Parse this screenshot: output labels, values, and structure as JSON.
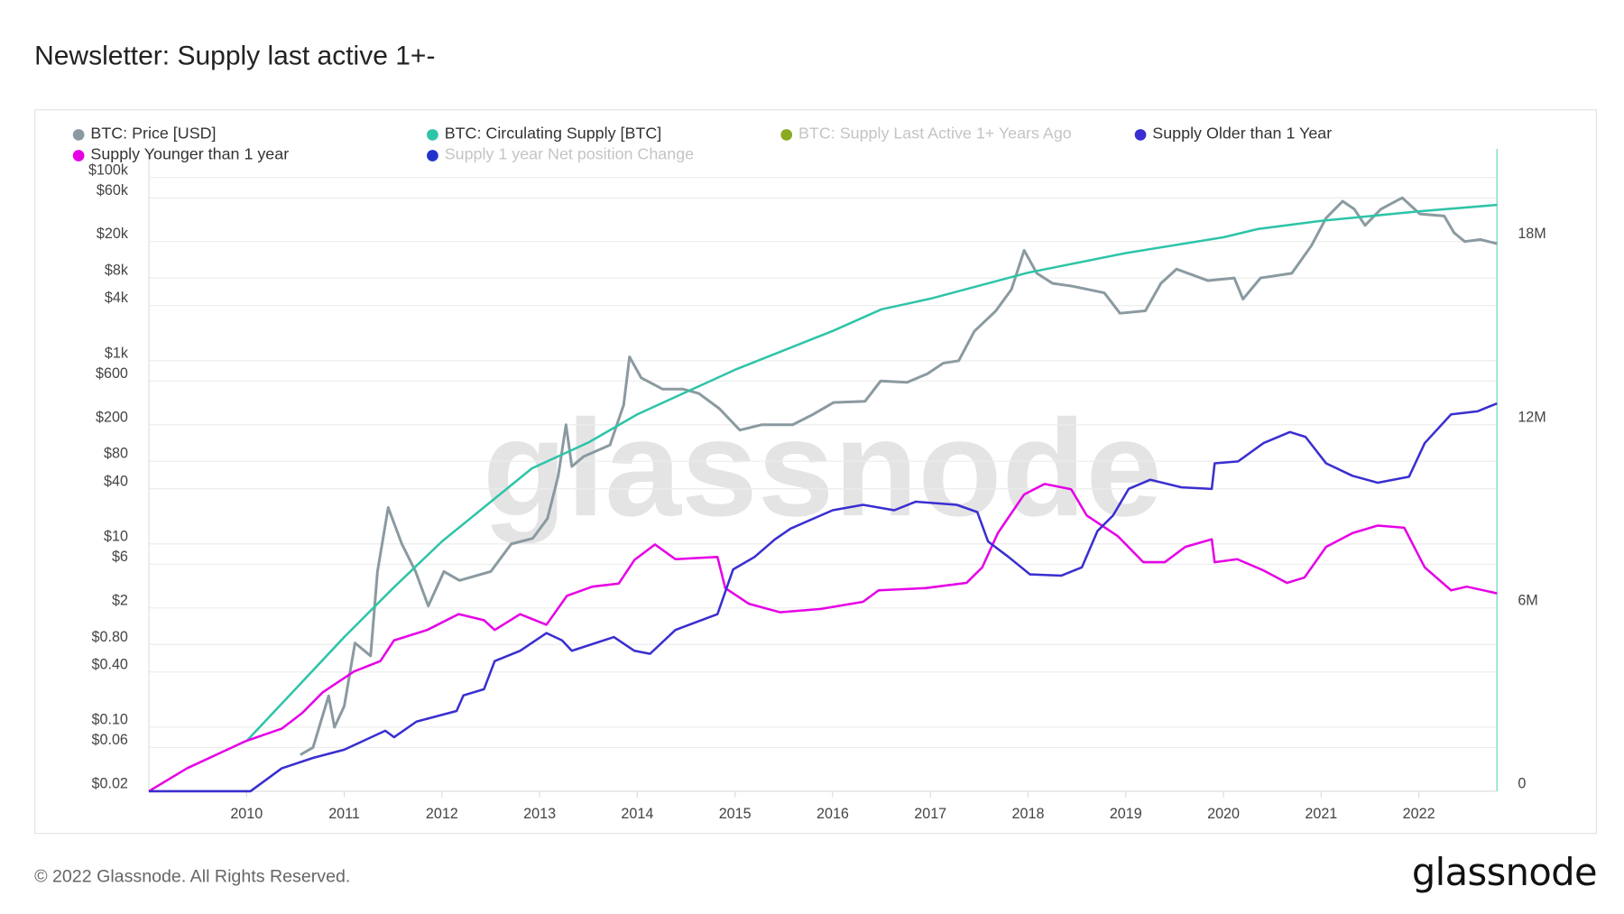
{
  "title": "Newsletter: Supply last active 1+-",
  "footer": "© 2022 Glassnode. All Rights Reserved.",
  "brand": "glassnode",
  "watermark": "glassnode",
  "chart_data": {
    "type": "line",
    "title": "Newsletter: Supply last active 1+-",
    "legend_placement": "top",
    "grid": true,
    "legend": [
      {
        "name": "BTC: Price [USD]",
        "color": "#8a9aa0",
        "active": true
      },
      {
        "name": "BTC: Circulating Supply [BTC]",
        "color": "#2ec4a8",
        "active": true
      },
      {
        "name": "BTC: Supply Last Active 1+ Years Ago",
        "color": "#8aaa22",
        "active": false
      },
      {
        "name": "Supply Older than 1 Year",
        "color": "#3a2ed0",
        "active": true
      },
      {
        "name": "Supply Younger than 1 year",
        "color": "#e600e6",
        "active": true
      },
      {
        "name": "Supply 1 year Net position Change",
        "color": "#2233cc",
        "active": false
      }
    ],
    "x_axis": {
      "range": [
        2009.0,
        2022.8
      ],
      "ticks": [
        "2010",
        "2011",
        "2012",
        "2013",
        "2014",
        "2015",
        "2016",
        "2017",
        "2018",
        "2019",
        "2020",
        "2021",
        "2022"
      ]
    },
    "y_left": {
      "scale": "log",
      "range": [
        0.02,
        100000
      ],
      "ticks": [
        {
          "label": "$100k",
          "value": 100000
        },
        {
          "label": "$60k",
          "value": 60000
        },
        {
          "label": "$20k",
          "value": 20000
        },
        {
          "label": "$8k",
          "value": 8000
        },
        {
          "label": "$4k",
          "value": 4000
        },
        {
          "label": "$1k",
          "value": 1000
        },
        {
          "label": "$600",
          "value": 600
        },
        {
          "label": "$200",
          "value": 200
        },
        {
          "label": "$80",
          "value": 80
        },
        {
          "label": "$40",
          "value": 40
        },
        {
          "label": "$10",
          "value": 10
        },
        {
          "label": "$6",
          "value": 6
        },
        {
          "label": "$2",
          "value": 2
        },
        {
          "label": "$0.80",
          "value": 0.8
        },
        {
          "label": "$0.40",
          "value": 0.4
        },
        {
          "label": "$0.10",
          "value": 0.1
        },
        {
          "label": "$0.06",
          "value": 0.06
        },
        {
          "label": "$0.02",
          "value": 0.02
        }
      ]
    },
    "y_right": {
      "scale": "linear",
      "range": [
        0,
        20700000
      ],
      "ticks": [
        {
          "label": "18M",
          "value": 18000000
        },
        {
          "label": "12M",
          "value": 12000000
        },
        {
          "label": "6M",
          "value": 6000000
        },
        {
          "label": "0",
          "value": 0
        }
      ]
    },
    "series": [
      {
        "name": "BTC: Price [USD]",
        "axis": "left",
        "color": "#8a9aa0",
        "points": [
          [
            2010.55,
            0.05
          ],
          [
            2010.68,
            0.06
          ],
          [
            2010.84,
            0.22
          ],
          [
            2010.9,
            0.1
          ],
          [
            2011.0,
            0.17
          ],
          [
            2011.11,
            0.83
          ],
          [
            2011.27,
            0.6
          ],
          [
            2011.34,
            5
          ],
          [
            2011.45,
            25
          ],
          [
            2011.59,
            10
          ],
          [
            2011.73,
            5
          ],
          [
            2011.86,
            2.1
          ],
          [
            2012.02,
            5
          ],
          [
            2012.18,
            4
          ],
          [
            2012.5,
            5
          ],
          [
            2012.71,
            10
          ],
          [
            2012.93,
            11.5
          ],
          [
            2013.08,
            19
          ],
          [
            2013.19,
            55
          ],
          [
            2013.27,
            200
          ],
          [
            2013.33,
            70
          ],
          [
            2013.45,
            90
          ],
          [
            2013.72,
            120
          ],
          [
            2013.86,
            330
          ],
          [
            2013.92,
            1100
          ],
          [
            2014.04,
            650
          ],
          [
            2014.26,
            490
          ],
          [
            2014.47,
            490
          ],
          [
            2014.63,
            440
          ],
          [
            2014.84,
            300
          ],
          [
            2015.05,
            175
          ],
          [
            2015.27,
            200
          ],
          [
            2015.59,
            200
          ],
          [
            2015.8,
            260
          ],
          [
            2016.01,
            350
          ],
          [
            2016.33,
            360
          ],
          [
            2016.49,
            600
          ],
          [
            2016.76,
            580
          ],
          [
            2016.97,
            720
          ],
          [
            2017.13,
            940
          ],
          [
            2017.29,
            1000
          ],
          [
            2017.45,
            2100
          ],
          [
            2017.67,
            3500
          ],
          [
            2017.83,
            6000
          ],
          [
            2017.96,
            16000
          ],
          [
            2018.09,
            9000
          ],
          [
            2018.25,
            7000
          ],
          [
            2018.46,
            6500
          ],
          [
            2018.78,
            5500
          ],
          [
            2018.94,
            3300
          ],
          [
            2019.2,
            3500
          ],
          [
            2019.36,
            7000
          ],
          [
            2019.52,
            10000
          ],
          [
            2019.84,
            7500
          ],
          [
            2020.11,
            8000
          ],
          [
            2020.2,
            4700
          ],
          [
            2020.38,
            8000
          ],
          [
            2020.7,
            9000
          ],
          [
            2020.9,
            18000
          ],
          [
            2021.05,
            36000
          ],
          [
            2021.22,
            55000
          ],
          [
            2021.34,
            45000
          ],
          [
            2021.45,
            30000
          ],
          [
            2021.61,
            45000
          ],
          [
            2021.83,
            60000
          ],
          [
            2022.01,
            40000
          ],
          [
            2022.26,
            38000
          ],
          [
            2022.36,
            25000
          ],
          [
            2022.47,
            20000
          ],
          [
            2022.63,
            21000
          ],
          [
            2022.8,
            19000
          ]
        ]
      },
      {
        "name": "BTC: Circulating Supply [BTC]",
        "axis": "right",
        "color": "#2ec4a8",
        "points": [
          [
            2010.0,
            1640000
          ],
          [
            2010.52,
            3410000
          ],
          [
            2011.0,
            5050000
          ],
          [
            2011.5,
            6650000
          ],
          [
            2012.0,
            8180000
          ],
          [
            2012.92,
            10570000
          ],
          [
            2013.5,
            11420000
          ],
          [
            2014.0,
            12340000
          ],
          [
            2015.0,
            13800000
          ],
          [
            2016.0,
            15070000
          ],
          [
            2016.5,
            15780000
          ],
          [
            2017.0,
            16130000
          ],
          [
            2018.0,
            16980000
          ],
          [
            2019.0,
            17620000
          ],
          [
            2020.0,
            18140000
          ],
          [
            2020.35,
            18410000
          ],
          [
            2021.0,
            18680000
          ],
          [
            2022.0,
            18990000
          ],
          [
            2022.8,
            19200000
          ]
        ]
      },
      {
        "name": "Supply Younger than 1 year",
        "axis": "right",
        "color": "#e600e6",
        "points": [
          [
            2009.0,
            0
          ],
          [
            2009.39,
            750000
          ],
          [
            2009.99,
            1640000
          ],
          [
            2010.36,
            2050000
          ],
          [
            2010.57,
            2560000
          ],
          [
            2010.78,
            3240000
          ],
          [
            2011.1,
            3920000
          ],
          [
            2011.37,
            4260000
          ],
          [
            2011.51,
            4940000
          ],
          [
            2011.85,
            5280000
          ],
          [
            2012.17,
            5800000
          ],
          [
            2012.43,
            5600000
          ],
          [
            2012.54,
            5280000
          ],
          [
            2012.8,
            5800000
          ],
          [
            2013.07,
            5450000
          ],
          [
            2013.28,
            6400000
          ],
          [
            2013.54,
            6700000
          ],
          [
            2013.81,
            6800000
          ],
          [
            2013.97,
            7570000
          ],
          [
            2014.18,
            8080000
          ],
          [
            2014.39,
            7600000
          ],
          [
            2014.82,
            7670000
          ],
          [
            2014.9,
            6650000
          ],
          [
            2015.14,
            6140000
          ],
          [
            2015.46,
            5860000
          ],
          [
            2015.88,
            5970000
          ],
          [
            2016.31,
            6200000
          ],
          [
            2016.47,
            6580000
          ],
          [
            2016.95,
            6650000
          ],
          [
            2017.37,
            6820000
          ],
          [
            2017.53,
            7330000
          ],
          [
            2017.69,
            8450000
          ],
          [
            2017.96,
            9720000
          ],
          [
            2018.17,
            10060000
          ],
          [
            2018.44,
            9890000
          ],
          [
            2018.6,
            9030000
          ],
          [
            2018.92,
            8350000
          ],
          [
            2019.18,
            7500000
          ],
          [
            2019.4,
            7500000
          ],
          [
            2019.61,
            8000000
          ],
          [
            2019.88,
            8250000
          ],
          [
            2019.91,
            7500000
          ],
          [
            2020.14,
            7600000
          ],
          [
            2020.41,
            7230000
          ],
          [
            2020.65,
            6820000
          ],
          [
            2020.83,
            7000000
          ],
          [
            2021.05,
            8000000
          ],
          [
            2021.32,
            8450000
          ],
          [
            2021.58,
            8700000
          ],
          [
            2021.85,
            8630000
          ],
          [
            2022.06,
            7330000
          ],
          [
            2022.33,
            6580000
          ],
          [
            2022.49,
            6700000
          ],
          [
            2022.8,
            6480000
          ]
        ]
      },
      {
        "name": "Supply Older than 1 Year",
        "axis": "right",
        "color": "#3a2ed0",
        "points": [
          [
            2009.0,
            0
          ],
          [
            2010.04,
            0
          ],
          [
            2010.36,
            750000
          ],
          [
            2010.68,
            1090000
          ],
          [
            2011.0,
            1360000
          ],
          [
            2011.42,
            1980000
          ],
          [
            2011.51,
            1770000
          ],
          [
            2011.74,
            2280000
          ],
          [
            2012.15,
            2630000
          ],
          [
            2012.22,
            3140000
          ],
          [
            2012.43,
            3340000
          ],
          [
            2012.54,
            4260000
          ],
          [
            2012.8,
            4600000
          ],
          [
            2013.07,
            5180000
          ],
          [
            2013.23,
            4940000
          ],
          [
            2013.33,
            4600000
          ],
          [
            2013.76,
            5050000
          ],
          [
            2013.97,
            4600000
          ],
          [
            2014.13,
            4500000
          ],
          [
            2014.39,
            5280000
          ],
          [
            2014.82,
            5800000
          ],
          [
            2014.98,
            7260000
          ],
          [
            2015.2,
            7670000
          ],
          [
            2015.41,
            8250000
          ],
          [
            2015.57,
            8600000
          ],
          [
            2016.0,
            9200000
          ],
          [
            2016.31,
            9380000
          ],
          [
            2016.63,
            9200000
          ],
          [
            2016.85,
            9480000
          ],
          [
            2017.27,
            9380000
          ],
          [
            2017.48,
            9140000
          ],
          [
            2017.59,
            8180000
          ],
          [
            2017.8,
            7670000
          ],
          [
            2018.02,
            7100000
          ],
          [
            2018.34,
            7060000
          ],
          [
            2018.55,
            7330000
          ],
          [
            2018.71,
            8520000
          ],
          [
            2018.87,
            9030000
          ],
          [
            2019.03,
            9900000
          ],
          [
            2019.25,
            10200000
          ],
          [
            2019.57,
            9950000
          ],
          [
            2019.88,
            9900000
          ],
          [
            2019.91,
            10740000
          ],
          [
            2020.15,
            10800000
          ],
          [
            2020.41,
            11400000
          ],
          [
            2020.68,
            11760000
          ],
          [
            2020.84,
            11600000
          ],
          [
            2021.05,
            10740000
          ],
          [
            2021.32,
            10330000
          ],
          [
            2021.58,
            10100000
          ],
          [
            2021.9,
            10300000
          ],
          [
            2022.06,
            11400000
          ],
          [
            2022.33,
            12340000
          ],
          [
            2022.6,
            12440000
          ],
          [
            2022.8,
            12700000
          ]
        ]
      }
    ]
  }
}
